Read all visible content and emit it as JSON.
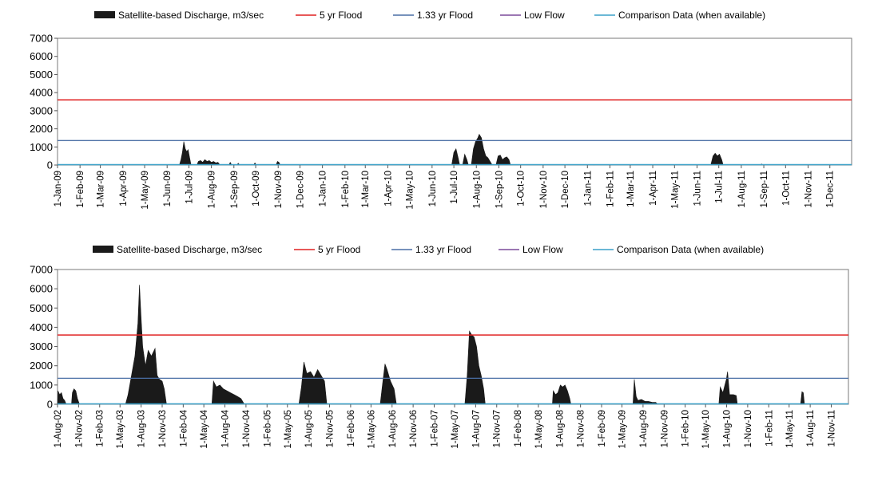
{
  "chart_data": [
    {
      "type": "area",
      "legend": [
        {
          "label": "Satellite-based Discharge, m3/sec",
          "color": "#1a1a1a",
          "kind": "area"
        },
        {
          "label": "5 yr Flood",
          "color": "#e02020",
          "kind": "line"
        },
        {
          "label": "1.33 yr Flood",
          "color": "#4a6fa5",
          "kind": "line"
        },
        {
          "label": "Low Flow",
          "color": "#7b4a9a",
          "kind": "line"
        },
        {
          "label": "Comparison Data (when available)",
          "color": "#3aa0c8",
          "kind": "line"
        }
      ],
      "ylim": [
        0,
        7000
      ],
      "yticks": [
        0,
        1000,
        2000,
        3000,
        4000,
        5000,
        6000,
        7000
      ],
      "x_range": [
        "2009-01-01",
        "2011-12-31"
      ],
      "x_ticks": [
        "1-Jan-09",
        "1-Feb-09",
        "1-Mar-09",
        "1-Apr-09",
        "1-May-09",
        "1-Jun-09",
        "1-Jul-09",
        "1-Aug-09",
        "1-Sep-09",
        "1-Oct-09",
        "1-Nov-09",
        "1-Dec-09",
        "1-Jan-10",
        "1-Feb-10",
        "1-Mar-10",
        "1-Apr-10",
        "1-May-10",
        "1-Jun-10",
        "1-Jul-10",
        "1-Aug-10",
        "1-Sep-10",
        "1-Oct-10",
        "1-Nov-10",
        "1-Dec-10",
        "1-Jan-11",
        "1-Feb-11",
        "1-Mar-11",
        "1-Apr-11",
        "1-May-11",
        "1-Jun-11",
        "1-Jul-11",
        "1-Aug-11",
        "1-Sep-11",
        "1-Oct-11",
        "1-Nov-11",
        "1-Dec-11"
      ],
      "reference_lines": {
        "five_yr_flood": 3600,
        "one_33_yr_flood": 1350,
        "low_flow": 0
      },
      "series": [
        {
          "name": "Satellite-based Discharge, m3/sec",
          "points": [
            [
              "2009-06-18",
              0
            ],
            [
              "2009-06-20",
              300
            ],
            [
              "2009-06-22",
              700
            ],
            [
              "2009-06-24",
              1300
            ],
            [
              "2009-06-26",
              900
            ],
            [
              "2009-06-28",
              750
            ],
            [
              "2009-06-30",
              850
            ],
            [
              "2009-07-02",
              400
            ],
            [
              "2009-07-04",
              0
            ],
            [
              "2009-07-12",
              0
            ],
            [
              "2009-07-14",
              200
            ],
            [
              "2009-07-17",
              250
            ],
            [
              "2009-07-20",
              150
            ],
            [
              "2009-07-23",
              300
            ],
            [
              "2009-07-26",
              200
            ],
            [
              "2009-07-29",
              250
            ],
            [
              "2009-08-01",
              150
            ],
            [
              "2009-08-04",
              200
            ],
            [
              "2009-08-07",
              120
            ],
            [
              "2009-08-10",
              150
            ],
            [
              "2009-08-13",
              0
            ],
            [
              "2009-08-25",
              0
            ],
            [
              "2009-08-27",
              150
            ],
            [
              "2009-08-29",
              0
            ],
            [
              "2009-09-05",
              0
            ],
            [
              "2009-09-07",
              100
            ],
            [
              "2009-09-09",
              0
            ],
            [
              "2009-09-28",
              0
            ],
            [
              "2009-09-30",
              120
            ],
            [
              "2009-10-02",
              0
            ],
            [
              "2009-10-29",
              0
            ],
            [
              "2009-10-31",
              200
            ],
            [
              "2009-11-02",
              150
            ],
            [
              "2009-11-04",
              0
            ],
            [
              "2010-06-28",
              0
            ],
            [
              "2010-07-01",
              700
            ],
            [
              "2010-07-04",
              900
            ],
            [
              "2010-07-07",
              400
            ],
            [
              "2010-07-09",
              0
            ],
            [
              "2010-07-13",
              0
            ],
            [
              "2010-07-16",
              600
            ],
            [
              "2010-07-19",
              300
            ],
            [
              "2010-07-21",
              0
            ],
            [
              "2010-07-25",
              0
            ],
            [
              "2010-07-28",
              900
            ],
            [
              "2010-07-31",
              1300
            ],
            [
              "2010-08-03",
              1500
            ],
            [
              "2010-08-05",
              1700
            ],
            [
              "2010-08-08",
              1500
            ],
            [
              "2010-08-11",
              900
            ],
            [
              "2010-08-14",
              500
            ],
            [
              "2010-08-17",
              400
            ],
            [
              "2010-08-20",
              200
            ],
            [
              "2010-08-23",
              0
            ],
            [
              "2010-08-28",
              0
            ],
            [
              "2010-08-31",
              500
            ],
            [
              "2010-09-03",
              550
            ],
            [
              "2010-09-06",
              300
            ],
            [
              "2010-09-09",
              400
            ],
            [
              "2010-09-12",
              450
            ],
            [
              "2010-09-15",
              300
            ],
            [
              "2010-09-17",
              0
            ],
            [
              "2011-01-09",
              0
            ],
            [
              "2011-01-10",
              30
            ],
            [
              "2011-01-11",
              0
            ],
            [
              "2011-06-20",
              0
            ],
            [
              "2011-06-23",
              500
            ],
            [
              "2011-06-26",
              650
            ],
            [
              "2011-06-29",
              500
            ],
            [
              "2011-07-02",
              600
            ],
            [
              "2011-07-05",
              300
            ],
            [
              "2011-07-07",
              0
            ],
            [
              "2011-08-27",
              0
            ],
            [
              "2011-08-29",
              60
            ],
            [
              "2011-08-31",
              0
            ]
          ]
        }
      ]
    },
    {
      "type": "area",
      "legend": [
        {
          "label": "Satellite-based Discharge, m3/sec",
          "color": "#1a1a1a",
          "kind": "area"
        },
        {
          "label": "5 yr Flood",
          "color": "#e02020",
          "kind": "line"
        },
        {
          "label": "1.33 yr Flood",
          "color": "#4a6fa5",
          "kind": "line"
        },
        {
          "label": "Low Flow",
          "color": "#7b4a9a",
          "kind": "line"
        },
        {
          "label": "Comparison Data (when available)",
          "color": "#3aa0c8",
          "kind": "line"
        }
      ],
      "ylim": [
        0,
        7000
      ],
      "yticks": [
        0,
        1000,
        2000,
        3000,
        4000,
        5000,
        6000,
        7000
      ],
      "x_range": [
        "2002-08-01",
        "2012-01-15"
      ],
      "x_ticks": [
        "1-Aug-02",
        "1-Nov-02",
        "1-Feb-03",
        "1-May-03",
        "1-Aug-03",
        "1-Nov-03",
        "1-Feb-04",
        "1-May-04",
        "1-Aug-04",
        "1-Nov-04",
        "1-Feb-05",
        "1-May-05",
        "1-Aug-05",
        "1-Nov-05",
        "1-Feb-06",
        "1-May-06",
        "1-Aug-06",
        "1-Nov-06",
        "1-Feb-07",
        "1-May-07",
        "1-Aug-07",
        "1-Nov-07",
        "1-Feb-08",
        "1-May-08",
        "1-Aug-08",
        "1-Nov-08",
        "1-Feb-09",
        "1-May-09",
        "1-Aug-09",
        "1-Nov-09",
        "1-Feb-10",
        "1-May-10",
        "1-Aug-10",
        "1-Nov-10",
        "1-Feb-11",
        "1-May-11",
        "1-Aug-11",
        "1-Nov-11"
      ],
      "reference_lines": {
        "five_yr_flood": 3600,
        "one_33_yr_flood": 1350,
        "low_flow": 0
      },
      "series": [
        {
          "name": "Satellite-based Discharge, m3/sec",
          "points": [
            [
              "2002-08-01",
              0
            ],
            [
              "2002-08-03",
              700
            ],
            [
              "2002-08-10",
              500
            ],
            [
              "2002-08-18",
              600
            ],
            [
              "2002-08-25",
              300
            ],
            [
              "2002-09-01",
              200
            ],
            [
              "2002-09-08",
              0
            ],
            [
              "2002-10-01",
              0
            ],
            [
              "2002-10-05",
              600
            ],
            [
              "2002-10-12",
              800
            ],
            [
              "2002-10-20",
              700
            ],
            [
              "2002-10-27",
              300
            ],
            [
              "2002-11-05",
              0
            ],
            [
              "2003-05-25",
              0
            ],
            [
              "2003-06-05",
              500
            ],
            [
              "2003-06-20",
              1500
            ],
            [
              "2003-07-05",
              2500
            ],
            [
              "2003-07-18",
              4200
            ],
            [
              "2003-07-25",
              6200
            ],
            [
              "2003-08-01",
              4500
            ],
            [
              "2003-08-08",
              3000
            ],
            [
              "2003-08-20",
              2000
            ],
            [
              "2003-09-01",
              2800
            ],
            [
              "2003-09-15",
              2500
            ],
            [
              "2003-10-01",
              2900
            ],
            [
              "2003-10-10",
              1500
            ],
            [
              "2003-10-20",
              1300
            ],
            [
              "2003-11-01",
              1200
            ],
            [
              "2003-11-10",
              800
            ],
            [
              "2003-11-20",
              0
            ],
            [
              "2004-06-05",
              0
            ],
            [
              "2004-06-12",
              1200
            ],
            [
              "2004-06-25",
              900
            ],
            [
              "2004-07-10",
              1000
            ],
            [
              "2004-07-25",
              800
            ],
            [
              "2004-08-10",
              700
            ],
            [
              "2004-08-25",
              600
            ],
            [
              "2004-09-10",
              500
            ],
            [
              "2004-09-25",
              400
            ],
            [
              "2004-10-10",
              300
            ],
            [
              "2004-10-25",
              0
            ],
            [
              "2005-06-20",
              0
            ],
            [
              "2005-07-01",
              900
            ],
            [
              "2005-07-12",
              2200
            ],
            [
              "2005-07-25",
              1600
            ],
            [
              "2005-08-10",
              1700
            ],
            [
              "2005-08-25",
              1400
            ],
            [
              "2005-09-10",
              1800
            ],
            [
              "2005-09-25",
              1500
            ],
            [
              "2005-10-10",
              1200
            ],
            [
              "2005-10-20",
              0
            ],
            [
              "2006-06-10",
              0
            ],
            [
              "2006-06-20",
              1000
            ],
            [
              "2006-07-01",
              2100
            ],
            [
              "2006-07-10",
              1800
            ],
            [
              "2006-07-25",
              1200
            ],
            [
              "2006-08-10",
              800
            ],
            [
              "2006-08-20",
              0
            ],
            [
              "2007-06-15",
              0
            ],
            [
              "2007-06-25",
              1500
            ],
            [
              "2007-07-05",
              3800
            ],
            [
              "2007-07-15",
              3600
            ],
            [
              "2007-07-25",
              3500
            ],
            [
              "2007-08-05",
              3000
            ],
            [
              "2007-08-15",
              2000
            ],
            [
              "2007-08-25",
              1500
            ],
            [
              "2007-09-05",
              800
            ],
            [
              "2007-09-12",
              0
            ],
            [
              "2008-07-01",
              0
            ],
            [
              "2008-07-05",
              700
            ],
            [
              "2008-07-15",
              500
            ],
            [
              "2008-07-25",
              600
            ],
            [
              "2008-08-05",
              1000
            ],
            [
              "2008-08-15",
              900
            ],
            [
              "2008-08-25",
              1000
            ],
            [
              "2008-09-05",
              700
            ],
            [
              "2008-09-15",
              300
            ],
            [
              "2008-09-20",
              0
            ],
            [
              "2009-06-18",
              0
            ],
            [
              "2009-06-24",
              1300
            ],
            [
              "2009-07-02",
              400
            ],
            [
              "2009-07-10",
              200
            ],
            [
              "2009-07-25",
              250
            ],
            [
              "2009-08-10",
              150
            ],
            [
              "2009-08-25",
              150
            ],
            [
              "2009-09-10",
              100
            ],
            [
              "2009-09-25",
              100
            ],
            [
              "2009-10-05",
              0
            ],
            [
              "2010-06-28",
              0
            ],
            [
              "2010-07-04",
              900
            ],
            [
              "2010-07-16",
              600
            ],
            [
              "2010-07-31",
              1300
            ],
            [
              "2010-08-05",
              1700
            ],
            [
              "2010-08-14",
              500
            ],
            [
              "2010-08-31",
              500
            ],
            [
              "2010-09-12",
              450
            ],
            [
              "2010-09-17",
              0
            ],
            [
              "2011-06-20",
              0
            ],
            [
              "2011-06-26",
              650
            ],
            [
              "2011-07-02",
              600
            ],
            [
              "2011-07-07",
              0
            ]
          ]
        }
      ]
    }
  ]
}
